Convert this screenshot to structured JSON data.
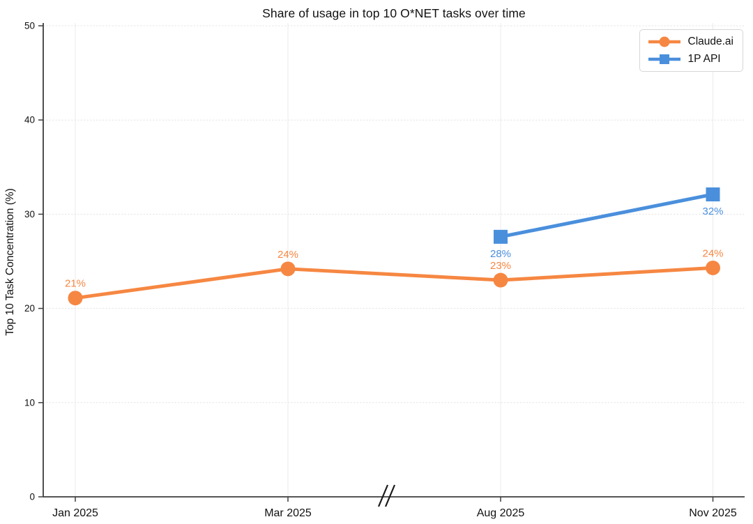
{
  "chart_data": {
    "type": "line",
    "title": "Share of usage in top 10 O*NET tasks over time",
    "xlabel": "",
    "ylabel": "Top 10 Task Concentration (%)",
    "categories": [
      "Jan 2025",
      "Mar 2025",
      "Aug 2025",
      "Nov 2025"
    ],
    "ylim": [
      0,
      50
    ],
    "yticks": [
      0,
      10,
      20,
      30,
      40,
      50
    ],
    "grid": true,
    "legend_position": "top-right",
    "axis_break": {
      "between": [
        "Mar 2025",
        "Aug 2025"
      ],
      "symbol": "//"
    },
    "series": [
      {
        "name": "Claude.ai",
        "color": "#F68742",
        "marker": "circle",
        "values": [
          21.1,
          24.2,
          23.0,
          24.3
        ],
        "labels": [
          "21%",
          "24%",
          "23%",
          "24%"
        ],
        "label_side": [
          "above",
          "above",
          "above",
          "above"
        ]
      },
      {
        "name": "1P API",
        "color": "#4A8FDC",
        "marker": "square",
        "values": [
          null,
          null,
          27.6,
          32.1
        ],
        "labels": [
          null,
          null,
          "28%",
          "32%"
        ],
        "label_side": [
          null,
          null,
          "below",
          "below"
        ]
      }
    ],
    "style": {
      "axis_color": "#3d3d3d",
      "grid_color": "#ebebeb",
      "tick_text_color": "#111111",
      "background": "#ffffff"
    }
  }
}
